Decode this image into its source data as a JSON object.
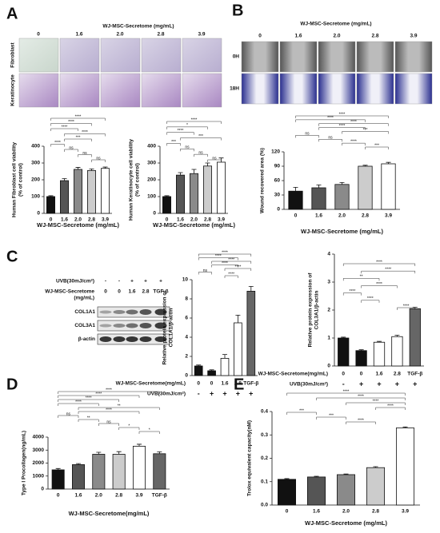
{
  "panels": [
    "A",
    "B",
    "C",
    "D",
    "E"
  ],
  "micrographs_A": {
    "title": "WJ-MSC-Secretome (mg/mL)",
    "columns": [
      "0",
      "1.6",
      "2.0",
      "2.8",
      "3.9"
    ],
    "rows": [
      "Fibroblast",
      "Keratinocyte"
    ]
  },
  "micrographs_B": {
    "title": "WJ-MSC-Secretome (mg/mL)",
    "columns": [
      "0",
      "1.6",
      "2.0",
      "2.8",
      "3.9"
    ],
    "rows": [
      "0H",
      "18H"
    ]
  },
  "blot": {
    "conditions": [
      {
        "label": "UVB(30mJ/cm²)",
        "values": [
          "-",
          "-",
          "+",
          "+",
          "+"
        ]
      },
      {
        "label": [
          "WJ-MSC-Secretome",
          "(mg/mL)"
        ],
        "values": [
          "0",
          "0",
          "1.6",
          "2.8",
          "TGF-β"
        ]
      }
    ],
    "bands": [
      "COL1A1",
      "COL3A1",
      "β-actin"
    ]
  },
  "chart_data": [
    {
      "type": "bar",
      "ylabel": [
        "Human Fibroblast cell viability",
        "(% of control)"
      ],
      "xlabel": "WJ-MSC-Secretome (mg/mL)",
      "categories": [
        "0",
        "1.6",
        "2.0",
        "2.8",
        "3.9"
      ],
      "values": [
        100,
        195,
        262,
        255,
        268
      ],
      "errors": [
        5,
        12,
        12,
        10,
        8
      ],
      "colors": [
        "#111111",
        "#555555",
        "#8a8a8a",
        "#cccccc",
        "#ffffff"
      ],
      "ylim": [
        0,
        400
      ],
      "yticks": [
        0,
        100,
        200,
        300,
        400
      ],
      "brackets": [
        {
          "text": "****",
          "between": [
            0,
            4
          ]
        },
        {
          "text": "****",
          "between": [
            0,
            3
          ]
        },
        {
          "text": "****",
          "between": [
            0,
            2
          ]
        },
        {
          "text": "****",
          "between": [
            1,
            4
          ]
        },
        {
          "text": "***",
          "between": [
            1,
            3
          ]
        },
        {
          "text": "****",
          "between": [
            0,
            1
          ]
        },
        {
          "text": "ns",
          "between": [
            1,
            2
          ]
        },
        {
          "text": "ns",
          "between": [
            2,
            3
          ]
        },
        {
          "text": "ns",
          "between": [
            3,
            4
          ]
        }
      ]
    },
    {
      "type": "bar",
      "ylabel": [
        "Human Keratinocyte cell viability",
        "(% of control)"
      ],
      "xlabel": "WJ-MSC-Secretome (mg/mL)",
      "categories": [
        "0",
        "1.6",
        "2.0",
        "2.8",
        "3.9"
      ],
      "values": [
        100,
        228,
        237,
        282,
        305
      ],
      "errors": [
        5,
        15,
        25,
        18,
        25
      ],
      "colors": [
        "#111111",
        "#555555",
        "#8a8a8a",
        "#cccccc",
        "#ffffff"
      ],
      "ylim": [
        0,
        400
      ],
      "yticks": [
        0,
        100,
        200,
        300,
        400
      ],
      "brackets": [
        {
          "text": "****",
          "between": [
            0,
            4
          ]
        },
        {
          "text": "*",
          "between": [
            0,
            3
          ]
        },
        {
          "text": "****",
          "between": [
            0,
            2
          ]
        },
        {
          "text": "***",
          "between": [
            1,
            4
          ]
        },
        {
          "text": "***",
          "between": [
            0,
            1
          ]
        },
        {
          "text": "ns",
          "between": [
            1,
            2
          ]
        },
        {
          "text": "ns",
          "between": [
            2,
            3
          ]
        },
        {
          "text": "ns",
          "between": [
            3,
            4
          ]
        }
      ]
    },
    {
      "type": "bar",
      "ylabel": [
        "Wound recovered area (%)"
      ],
      "xlabel": "WJ-MSC-Secretome (mg/mL)",
      "categories": [
        "0",
        "1.6",
        "2.0",
        "2.8",
        "3.9"
      ],
      "values": [
        38,
        45,
        52,
        90,
        95
      ],
      "errors": [
        8,
        6,
        4,
        2,
        3
      ],
      "colors": [
        "#111111",
        "#555555",
        "#8a8a8a",
        "#cccccc",
        "#ffffff"
      ],
      "ylim": [
        0,
        120
      ],
      "yticks": [
        0,
        30,
        60,
        90,
        120
      ],
      "brackets": [
        {
          "text": "****",
          "between": [
            0,
            4
          ]
        },
        {
          "text": "****",
          "between": [
            0,
            3
          ]
        },
        {
          "text": "****",
          "between": [
            1,
            4
          ]
        },
        {
          "text": "****",
          "between": [
            1,
            3
          ]
        },
        {
          "text": "***",
          "between": [
            2,
            4
          ]
        },
        {
          "text": "ns",
          "between": [
            0,
            1
          ]
        },
        {
          "text": "ns",
          "between": [
            1,
            2
          ]
        },
        {
          "text": "****",
          "between": [
            2,
            3
          ]
        },
        {
          "text": "***",
          "between": [
            3,
            4
          ]
        }
      ]
    },
    {
      "type": "bar",
      "ylabel": [
        "Relative protein expression of",
        "COL1A1/β-actin"
      ],
      "row_labels": [
        "WJ-MSC-Secretome(mg/mL)",
        "UVB(30mJ/cm²)"
      ],
      "categories": [
        "0",
        "0",
        "1.6",
        "2.8",
        "TGF-β"
      ],
      "uvb": [
        "-",
        "+",
        "+",
        "+",
        "+"
      ],
      "values": [
        1.0,
        0.5,
        1.8,
        5.5,
        8.8
      ],
      "errors": [
        0.1,
        0.1,
        0.4,
        0.8,
        0.5
      ],
      "colors": [
        "#111111",
        "#111111",
        "#ffffff",
        "#ffffff",
        "#666666"
      ],
      "ylim": [
        0,
        10
      ],
      "yticks": [
        0,
        2,
        4,
        6,
        8,
        10
      ],
      "brackets": [
        {
          "text": "****",
          "between": [
            0,
            4
          ]
        },
        {
          "text": "****",
          "between": [
            0,
            3
          ]
        },
        {
          "text": "****",
          "between": [
            1,
            4
          ]
        },
        {
          "text": "****",
          "between": [
            1,
            3
          ]
        },
        {
          "text": "****",
          "between": [
            2,
            4
          ]
        },
        {
          "text": "ns",
          "between": [
            0,
            1
          ]
        },
        {
          "text": "****",
          "between": [
            2,
            3
          ]
        }
      ]
    },
    {
      "type": "bar",
      "ylabel": [
        "Relative protein expression of",
        "COL3A1/β-actin"
      ],
      "row_labels": [
        "WJ-MSC-Secretome(mg/mL)",
        "UVB(30mJ/cm²)"
      ],
      "categories": [
        "0",
        "0",
        "1.6",
        "2.8",
        "TGF-β"
      ],
      "uvb": [
        "-",
        "+",
        "+",
        "+",
        "+"
      ],
      "values": [
        1.0,
        0.55,
        0.85,
        1.05,
        2.05
      ],
      "errors": [
        0.03,
        0.03,
        0.03,
        0.05,
        0.05
      ],
      "colors": [
        "#111111",
        "#111111",
        "#ffffff",
        "#ffffff",
        "#666666"
      ],
      "ylim": [
        0,
        4
      ],
      "yticks": [
        0,
        1,
        2,
        3,
        4
      ],
      "brackets": [
        {
          "text": "****",
          "between": [
            0,
            4
          ]
        },
        {
          "text": "****",
          "between": [
            1,
            4
          ]
        },
        {
          "text": "**",
          "between": [
            0,
            2
          ]
        },
        {
          "text": "****",
          "between": [
            1,
            3
          ]
        },
        {
          "text": "****",
          "between": [
            0,
            1
          ]
        },
        {
          "text": "****",
          "between": [
            1,
            2
          ]
        },
        {
          "text": "****",
          "between": [
            3,
            4
          ]
        }
      ]
    },
    {
      "type": "bar",
      "ylabel": [
        "Type I Procollagen(ng/mL)"
      ],
      "xlabel": "WJ-MSC-Secretome(mg/mL)",
      "categories": [
        "0",
        "1.6",
        "2.0",
        "2.8",
        "3.9",
        "TGF-β"
      ],
      "values": [
        1480,
        1880,
        2680,
        2680,
        3300,
        2720
      ],
      "errors": [
        100,
        80,
        150,
        200,
        150,
        150
      ],
      "colors": [
        "#111111",
        "#555555",
        "#8a8a8a",
        "#cccccc",
        "#ffffff",
        "#666666"
      ],
      "ylim": [
        0,
        4000
      ],
      "yticks": [
        0,
        1000,
        2000,
        3000,
        4000
      ],
      "brackets": [
        {
          "text": "****",
          "between": [
            0,
            5
          ]
        },
        {
          "text": "****",
          "between": [
            0,
            4
          ]
        },
        {
          "text": "****",
          "between": [
            0,
            3
          ]
        },
        {
          "text": "****",
          "between": [
            0,
            2
          ]
        },
        {
          "text": "**",
          "between": [
            1,
            5
          ]
        },
        {
          "text": "****",
          "between": [
            1,
            4
          ]
        },
        {
          "text": "ns",
          "between": [
            0,
            1
          ]
        },
        {
          "text": "**",
          "between": [
            1,
            2
          ]
        },
        {
          "text": "ns",
          "between": [
            2,
            3
          ]
        },
        {
          "text": "*",
          "between": [
            3,
            4
          ]
        },
        {
          "text": "*",
          "between": [
            4,
            5
          ]
        }
      ]
    },
    {
      "type": "bar",
      "ylabel": [
        "Trolox equivalent capacity(nM)"
      ],
      "xlabel": "WJ-MSC-Secretome (mg/mL)",
      "categories": [
        "0",
        "1.6",
        "2.0",
        "2.8",
        "3.9"
      ],
      "values": [
        0.11,
        0.12,
        0.13,
        0.16,
        0.33
      ],
      "errors": [
        0.003,
        0.003,
        0.003,
        0.004,
        0.004
      ],
      "colors": [
        "#111111",
        "#555555",
        "#8a8a8a",
        "#cccccc",
        "#ffffff"
      ],
      "ylim": [
        0,
        0.4
      ],
      "yticks": [
        {
          "value": 0,
          "label": "0.0"
        },
        0.1,
        0.2,
        0.3,
        0.4
      ],
      "brackets": [
        {
          "text": "****",
          "between": [
            0,
            4
          ]
        },
        {
          "text": "****",
          "between": [
            1,
            4
          ]
        },
        {
          "text": "****",
          "between": [
            2,
            4
          ]
        },
        {
          "text": "****",
          "between": [
            3,
            4
          ]
        },
        {
          "text": "***",
          "between": [
            0,
            1
          ]
        },
        {
          "text": "***",
          "between": [
            1,
            2
          ]
        },
        {
          "text": "****",
          "between": [
            2,
            3
          ]
        }
      ]
    }
  ]
}
